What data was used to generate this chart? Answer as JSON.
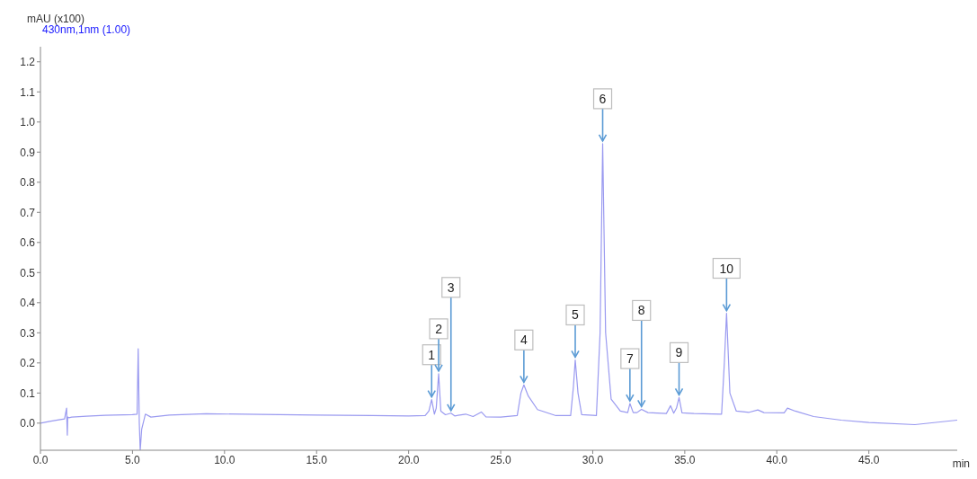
{
  "chart_data": {
    "type": "line",
    "xlabel": "min",
    "ylabel": "mAU (x100)",
    "xlim": [
      0,
      49.8
    ],
    "xticks": [
      {
        "value": 0,
        "label": "0.0"
      },
      {
        "value": 5,
        "label": "5.0"
      },
      {
        "value": 10,
        "label": "10.0"
      },
      {
        "value": 15,
        "label": "15.0"
      },
      {
        "value": 20,
        "label": "20.0"
      },
      {
        "value": 25,
        "label": "25.0"
      },
      {
        "value": 30,
        "label": "30.0"
      },
      {
        "value": 35,
        "label": "35.0"
      },
      {
        "value": 40,
        "label": "40.0"
      },
      {
        "value": 45,
        "label": "45.0"
      }
    ],
    "ylim": [
      -0.09,
      1.25
    ],
    "yticks": [
      {
        "value": 0,
        "label": "0.0"
      },
      0.1,
      0.2,
      0.3,
      0.4,
      0.5,
      0.6,
      0.7,
      0.8,
      0.9,
      {
        "value": 1,
        "label": "1.0"
      },
      1.1,
      1.2
    ],
    "grid": false,
    "legend": "top left",
    "marker": "none",
    "line_style": "solid",
    "series": [
      {
        "name": "430nm,1nm (1.00)",
        "color": "#9a9af0",
        "x": [
          0,
          0.5,
          1.0,
          1.31,
          1.42,
          1.44,
          1.46,
          1.48,
          1.55,
          1.7,
          2.5,
          3.5,
          5.0,
          5.25,
          5.31,
          5.37,
          5.42,
          5.5,
          5.7,
          6.0,
          7.0,
          9.0,
          12.0,
          15.0,
          18.0,
          20.0,
          20.9,
          21.1,
          21.25,
          21.4,
          21.5,
          21.63,
          21.75,
          22.0,
          22.3,
          22.5,
          23.1,
          23.5,
          23.95,
          24.2,
          25.0,
          25.9,
          26.1,
          26.26,
          26.5,
          27.0,
          28.0,
          28.8,
          28.95,
          29.05,
          29.2,
          29.4,
          30.2,
          30.4,
          30.54,
          30.7,
          31.0,
          31.5,
          31.9,
          32.02,
          32.2,
          32.4,
          32.65,
          33.0,
          34.0,
          34.23,
          34.4,
          34.55,
          34.69,
          34.85,
          35.5,
          37.0,
          37.15,
          37.27,
          37.45,
          37.8,
          38.5,
          38.97,
          39.3,
          40.4,
          40.58,
          41.0,
          42.0,
          43.5,
          45.0,
          47.5,
          49.8
        ],
        "values": [
          0,
          0.006,
          0.011,
          0.014,
          0.05,
          0.0,
          -0.04,
          0.02,
          0.018,
          0.02,
          0.023,
          0.026,
          0.028,
          0.03,
          0.247,
          0.0,
          -0.09,
          -0.02,
          0.03,
          0.02,
          0.027,
          0.031,
          0.029,
          0.027,
          0.025,
          0.024,
          0.025,
          0.04,
          0.078,
          0.03,
          0.05,
          0.164,
          0.04,
          0.028,
          0.033,
          0.024,
          0.03,
          0.022,
          0.037,
          0.021,
          0.02,
          0.025,
          0.1,
          0.127,
          0.09,
          0.045,
          0.025,
          0.025,
          0.12,
          0.21,
          0.1,
          0.028,
          0.025,
          0.3,
          0.928,
          0.3,
          0.08,
          0.04,
          0.035,
          0.065,
          0.035,
          0.035,
          0.046,
          0.035,
          0.032,
          0.058,
          0.033,
          0.05,
          0.085,
          0.034,
          0.032,
          0.03,
          0.2,
          0.365,
          0.1,
          0.04,
          0.036,
          0.044,
          0.035,
          0.034,
          0.05,
          0.04,
          0.022,
          0.01,
          0.002,
          -0.005,
          0.01
        ]
      }
    ],
    "annotations": [
      {
        "text": "1",
        "x": 21.25,
        "y": 0.078
      },
      {
        "text": "2",
        "x": 21.63,
        "y": 0.164
      },
      {
        "text": "3",
        "x": 22.3,
        "y": 0.033
      },
      {
        "text": "4",
        "x": 26.26,
        "y": 0.127
      },
      {
        "text": "5",
        "x": 29.05,
        "y": 0.21
      },
      {
        "text": "6",
        "x": 30.54,
        "y": 0.928
      },
      {
        "text": "7",
        "x": 32.02,
        "y": 0.065
      },
      {
        "text": "8",
        "x": 32.65,
        "y": 0.046
      },
      {
        "text": "9",
        "x": 34.69,
        "y": 0.085
      },
      {
        "text": "10",
        "x": 37.27,
        "y": 0.365
      }
    ]
  }
}
